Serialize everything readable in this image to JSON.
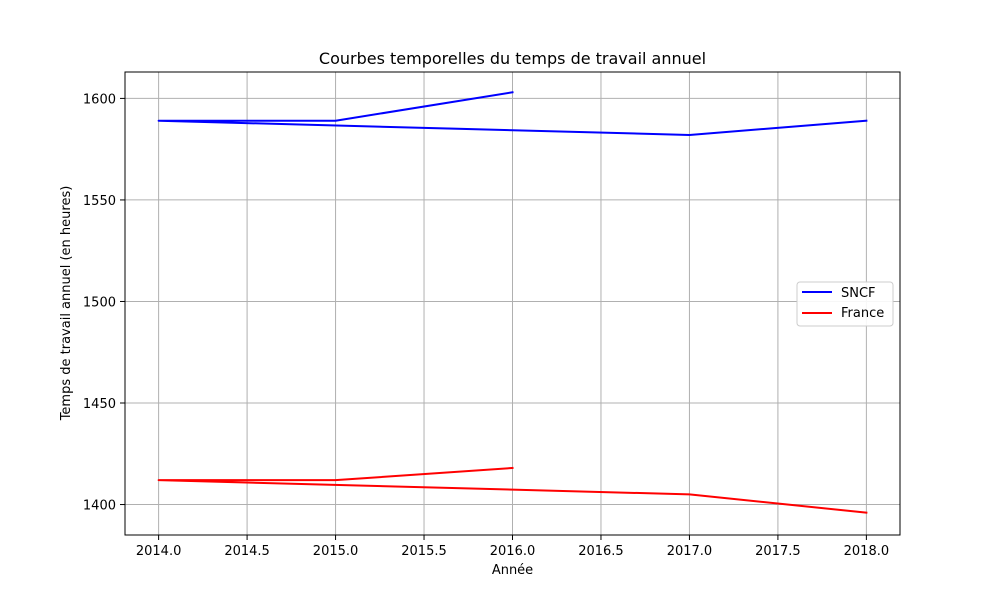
{
  "chart_data": {
    "type": "line",
    "title": "Courbes temporelles du temps de travail annuel",
    "xlabel": "Année",
    "ylabel": "Temps de travail annuel (en heures)",
    "xlim": [
      2013.81,
      2018.19
    ],
    "ylim": [
      1385,
      1613
    ],
    "xticks": [
      2014.0,
      2014.5,
      2015.0,
      2015.5,
      2016.0,
      2016.5,
      2017.0,
      2017.5,
      2018.0
    ],
    "xtick_labels": [
      "2014.0",
      "2014.5",
      "2015.0",
      "2015.5",
      "2016.0",
      "2016.5",
      "2017.0",
      "2017.5",
      "2018.0"
    ],
    "yticks": [
      1400,
      1450,
      1500,
      1550,
      1600
    ],
    "ytick_labels": [
      "1400",
      "1450",
      "1500",
      "1550",
      "1600"
    ],
    "grid": true,
    "legend_position": "center-right",
    "series": [
      {
        "name": "SNCF",
        "color": "#0000ff",
        "points": [
          [
            2016,
            1603
          ],
          [
            2015,
            1589
          ],
          [
            2014,
            1589
          ],
          [
            2017,
            1582
          ],
          [
            2018,
            1589
          ]
        ]
      },
      {
        "name": "France",
        "color": "#ff0000",
        "points": [
          [
            2016,
            1418
          ],
          [
            2015,
            1412
          ],
          [
            2014,
            1412
          ],
          [
            2017,
            1405
          ],
          [
            2018,
            1396
          ]
        ]
      }
    ]
  }
}
